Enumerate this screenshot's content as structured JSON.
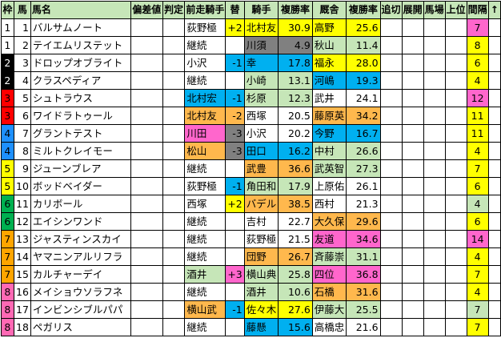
{
  "headers": [
    "枠",
    "馬",
    "馬名",
    "偏差値",
    "判定",
    "前走騎手",
    "替",
    "騎手",
    "複勝率",
    "厩舎",
    "複勝率",
    "追切",
    "展開",
    "馬場",
    "上位",
    "間隔",
    "↑"
  ],
  "colors": {
    "header_bg": "#c6e6b8",
    "wk1": "#ffffff",
    "wk2": "#000000",
    "wk3": "#ff0000",
    "wk4": "#1e90ff",
    "wk5": "#ffff00",
    "wk6": "#00b050",
    "wk7": "#ffa500",
    "wk8": "#ff69b4",
    "yellow": "#ffff00",
    "cyan": "#00b0f0",
    "orange": "#ffb84d",
    "gray": "#808080",
    "pink": "#ff66cc",
    "lime": "#c6e6b8"
  },
  "rows": [
    {
      "waku": "1",
      "num": "1",
      "name": "バルサムノート",
      "prev": "荻野極",
      "change": "+2",
      "jockey": "北村友",
      "jrate": "30.9",
      "stable": "高野",
      "srate": "25.6",
      "interval": "7"
    },
    {
      "waku": "1",
      "num": "2",
      "name": "テイエムリステット",
      "prev": "継続",
      "change": "",
      "jockey": "川須",
      "jrate": "4.9",
      "stable": "秋山",
      "srate": "11.4",
      "interval": "8"
    },
    {
      "waku": "2",
      "num": "3",
      "name": "ドロップオブライト",
      "prev": "小沢",
      "change": "-1",
      "jockey": "幸",
      "jrate": "17.8",
      "stable": "福永",
      "srate": "28.0",
      "interval": "6"
    },
    {
      "waku": "2",
      "num": "4",
      "name": "クラスペディア",
      "prev": "継続",
      "change": "",
      "jockey": "小崎",
      "jrate": "13.1",
      "stable": "河嶋",
      "srate": "19.3",
      "interval": "4"
    },
    {
      "waku": "3",
      "num": "5",
      "name": "シュトラウス",
      "prev": "北村宏",
      "change": "-1",
      "jockey": "杉原",
      "jrate": "12.3",
      "stable": "武井",
      "srate": "24.1",
      "interval": "12"
    },
    {
      "waku": "3",
      "num": "6",
      "name": "ワイドラトゥール",
      "prev": "北村友",
      "change": "-2",
      "jockey": "西塚",
      "jrate": "20.5",
      "stable": "藤原英",
      "srate": "34.2",
      "interval": "11"
    },
    {
      "waku": "4",
      "num": "7",
      "name": "グラントテスト",
      "prev": "川田",
      "change": "-3",
      "jockey": "小沢",
      "jrate": "20.2",
      "stable": "今野",
      "srate": "16.7",
      "interval": "11"
    },
    {
      "waku": "4",
      "num": "8",
      "name": "ミルトクレイモー",
      "prev": "松山",
      "change": "-3",
      "jockey": "田口",
      "jrate": "16.2",
      "stable": "中村",
      "srate": "26.6",
      "interval": "4"
    },
    {
      "waku": "5",
      "num": "9",
      "name": "ジューンブレア",
      "prev": "継続",
      "change": "",
      "jockey": "武豊",
      "jrate": "36.6",
      "stable": "武英智",
      "srate": "27.3",
      "interval": "7"
    },
    {
      "waku": "5",
      "num": "10",
      "name": "ボッドベイダー",
      "prev": "荻野極",
      "change": "-1",
      "jockey": "角田和",
      "jrate": "17.9",
      "stable": "上原佑",
      "srate": "26.1",
      "interval": "6"
    },
    {
      "waku": "6",
      "num": "11",
      "name": "カリボール",
      "prev": "西塚",
      "change": "+2",
      "jockey": "バデル",
      "jrate": "38.5",
      "stable": "西村",
      "srate": "21.3",
      "interval": "4"
    },
    {
      "waku": "6",
      "num": "12",
      "name": "エイシンワンド",
      "prev": "継続",
      "change": "",
      "jockey": "吉村",
      "jrate": "22.7",
      "stable": "大久保",
      "srate": "29.6",
      "interval": "6"
    },
    {
      "waku": "7",
      "num": "13",
      "name": "ジャスティンスカイ",
      "prev": "継続",
      "change": "",
      "jockey": "荻野極",
      "jrate": "21.5",
      "stable": "友道",
      "srate": "34.6",
      "interval": "14"
    },
    {
      "waku": "7",
      "num": "14",
      "name": "ヤマニンアルリフラ",
      "prev": "継続",
      "change": "",
      "jockey": "団野",
      "jrate": "26.7",
      "stable": "斉藤崇",
      "srate": "31.1",
      "interval": "4"
    },
    {
      "waku": "7",
      "num": "15",
      "name": "カルチャーデイ",
      "prev": "酒井",
      "change": "+3",
      "jockey": "横山典",
      "jrate": "25.8",
      "stable": "四位",
      "srate": "36.8",
      "interval": "7"
    },
    {
      "waku": "8",
      "num": "16",
      "name": "メイショウソラフネ",
      "prev": "継続",
      "change": "",
      "jockey": "酒井",
      "jrate": "10.6",
      "stable": "石橋",
      "srate": "31.6",
      "interval": "4"
    },
    {
      "waku": "8",
      "num": "17",
      "name": "インビンシブルパパ",
      "prev": "横山武",
      "change": "-1",
      "jockey": "佐々木",
      "jrate": "27.6",
      "stable": "伊藤大",
      "srate": "25.5",
      "interval": "7"
    },
    {
      "waku": "8",
      "num": "18",
      "name": "ペガリス",
      "prev": "継続",
      "change": "",
      "jockey": "藤懸",
      "jrate": "15.6",
      "stable": "高橋忠",
      "srate": "21.6",
      "interval": "7"
    }
  ]
}
